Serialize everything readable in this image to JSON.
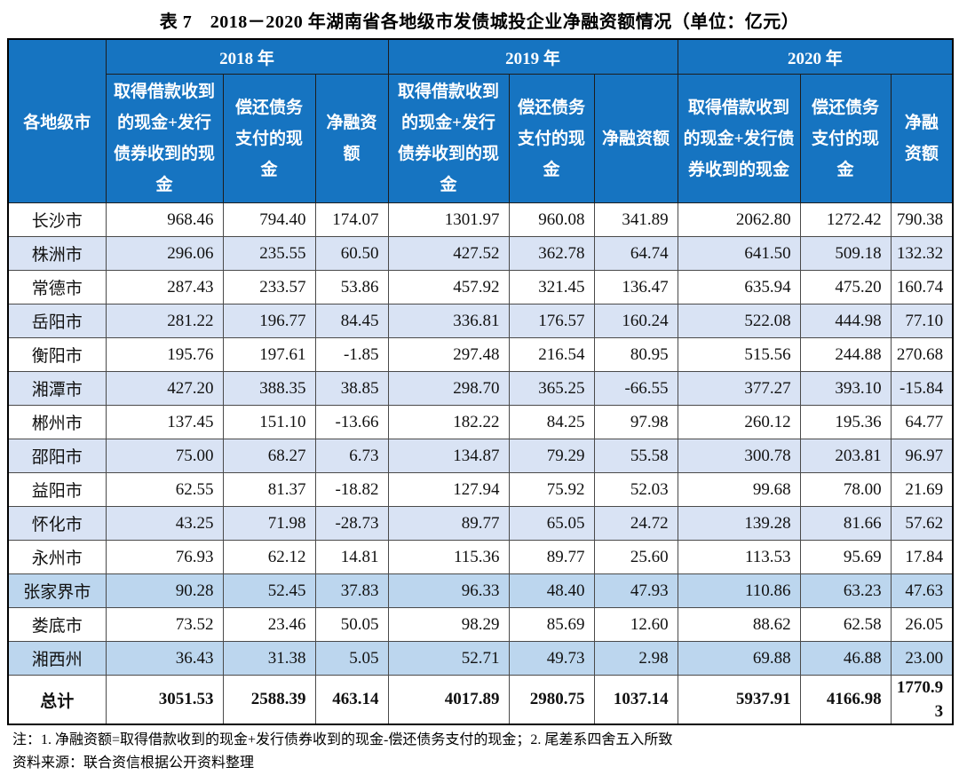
{
  "title": "表 7　2018－2020 年湖南省各地级市发债城投企业净融资额情况（单位：亿元）",
  "colors": {
    "header_bg": "#1674C1",
    "header_text": "#FFFFFF",
    "stripe_light": "#D9E3F4",
    "stripe_medium": "#BCD6EE",
    "row_white": "#FFFFFF",
    "border": "#4A4A4A"
  },
  "table": {
    "corner_header": "各地级市",
    "year_groups": [
      {
        "year": "2018 年"
      },
      {
        "year": "2019 年"
      },
      {
        "year": "2020 年"
      }
    ],
    "sub_headers": [
      "取得借款收到的现金+发行债券收到的现金",
      "偿还债务支付的现金",
      "净融资额"
    ],
    "rows": [
      {
        "city": "长沙市",
        "shade": "white",
        "values": [
          "968.46",
          "794.40",
          "174.07",
          "1301.97",
          "960.08",
          "341.89",
          "2062.80",
          "1272.42",
          "790.38"
        ]
      },
      {
        "city": "株洲市",
        "shade": "light",
        "values": [
          "296.06",
          "235.55",
          "60.50",
          "427.52",
          "362.78",
          "64.74",
          "641.50",
          "509.18",
          "132.32"
        ]
      },
      {
        "city": "常德市",
        "shade": "white",
        "values": [
          "287.43",
          "233.57",
          "53.86",
          "457.92",
          "321.45",
          "136.47",
          "635.94",
          "475.20",
          "160.74"
        ]
      },
      {
        "city": "岳阳市",
        "shade": "light",
        "values": [
          "281.22",
          "196.77",
          "84.45",
          "336.81",
          "176.57",
          "160.24",
          "522.08",
          "444.98",
          "77.10"
        ]
      },
      {
        "city": "衡阳市",
        "shade": "white",
        "values": [
          "195.76",
          "197.61",
          "-1.85",
          "297.48",
          "216.54",
          "80.95",
          "515.56",
          "244.88",
          "270.68"
        ]
      },
      {
        "city": "湘潭市",
        "shade": "light",
        "values": [
          "427.20",
          "388.35",
          "38.85",
          "298.70",
          "365.25",
          "-66.55",
          "377.27",
          "393.10",
          "-15.84"
        ]
      },
      {
        "city": "郴州市",
        "shade": "white",
        "values": [
          "137.45",
          "151.10",
          "-13.66",
          "182.22",
          "84.25",
          "97.98",
          "260.12",
          "195.36",
          "64.77"
        ]
      },
      {
        "city": "邵阳市",
        "shade": "light",
        "values": [
          "75.00",
          "68.27",
          "6.73",
          "134.87",
          "79.29",
          "55.58",
          "300.78",
          "203.81",
          "96.97"
        ]
      },
      {
        "city": "益阳市",
        "shade": "white",
        "values": [
          "62.55",
          "81.37",
          "-18.82",
          "127.94",
          "75.92",
          "52.03",
          "99.68",
          "78.00",
          "21.69"
        ]
      },
      {
        "city": "怀化市",
        "shade": "light",
        "values": [
          "43.25",
          "71.98",
          "-28.73",
          "89.77",
          "65.05",
          "24.72",
          "139.28",
          "81.66",
          "57.62"
        ]
      },
      {
        "city": "永州市",
        "shade": "white",
        "values": [
          "76.93",
          "62.12",
          "14.81",
          "115.36",
          "89.77",
          "25.60",
          "113.53",
          "95.69",
          "17.84"
        ]
      },
      {
        "city": "张家界市",
        "shade": "medium",
        "values": [
          "90.28",
          "52.45",
          "37.83",
          "96.33",
          "48.40",
          "47.93",
          "110.86",
          "63.23",
          "47.63"
        ]
      },
      {
        "city": "娄底市",
        "shade": "white",
        "values": [
          "73.52",
          "23.46",
          "50.05",
          "98.29",
          "85.69",
          "12.60",
          "88.62",
          "62.58",
          "26.05"
        ]
      },
      {
        "city": "湘西州",
        "shade": "medium",
        "values": [
          "36.43",
          "31.38",
          "5.05",
          "52.71",
          "49.73",
          "2.98",
          "69.88",
          "46.88",
          "23.00"
        ]
      }
    ],
    "total_row": {
      "label": "总计",
      "values": [
        "3051.53",
        "2588.39",
        "463.14",
        "4017.89",
        "2980.75",
        "1037.14",
        "5937.91",
        "4166.98",
        "1770.93"
      ]
    }
  },
  "notes": [
    "注：1. 净融资额=取得借款收到的现金+发行债券收到的现金-偿还债务支付的现金；2. 尾差系四舍五入所致",
    "资料来源：联合资信根据公开资料整理"
  ]
}
